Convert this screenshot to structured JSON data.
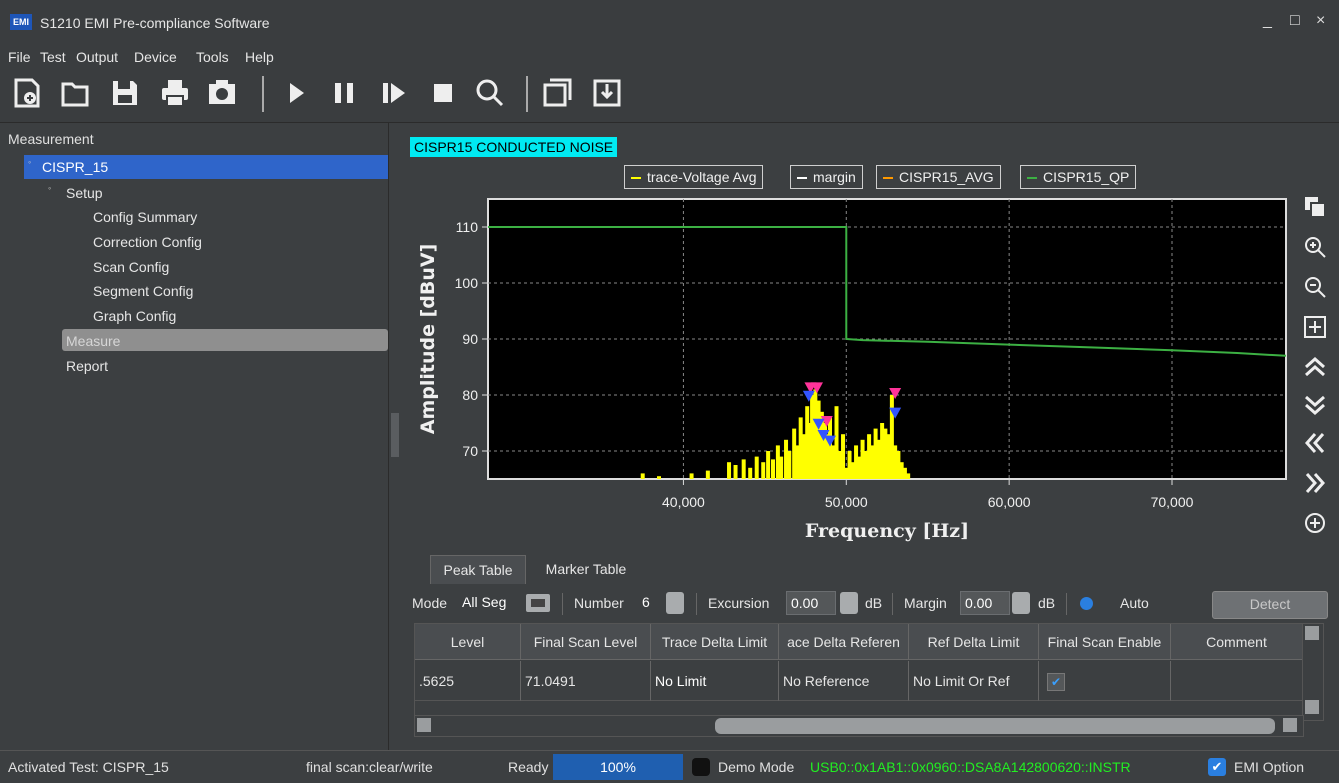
{
  "window": {
    "title": "S1210 EMI Pre-compliance Software",
    "icon_text": "EMI",
    "minimize": "_",
    "maximize": "□",
    "close": "×"
  },
  "menu": [
    "File",
    "Test",
    "Output",
    "Device",
    "Tools",
    "Help"
  ],
  "toolbar": {
    "icons": [
      "new-file-icon",
      "open-folder-icon",
      "save-icon",
      "print-icon",
      "screenshot-icon",
      "run-icon",
      "pause-icon",
      "step-icon",
      "stop-icon",
      "search-icon",
      "window-icon",
      "export-icon"
    ]
  },
  "tree": {
    "header": "Measurement",
    "root": "CISPR_15",
    "setup": "Setup",
    "setup_children": [
      "Config Summary",
      "Correction Config",
      "Scan Config",
      "Segment Config",
      "Graph Config"
    ],
    "measure": "Measure",
    "report": "Report"
  },
  "graph": {
    "trace_title": "CISPR15 CONDUCTED NOISE",
    "legend": [
      {
        "name": "trace-Voltage Avg",
        "color": "#ffff00"
      },
      {
        "name": "margin",
        "color": "#ffffff"
      },
      {
        "name": "CISPR15_AVG",
        "color": "#ff9900"
      },
      {
        "name": "CISPR15_QP",
        "color": "#3cb043"
      }
    ],
    "side_icons": [
      "copy-icon",
      "zoom-in-icon",
      "zoom-out-icon",
      "fit-icon",
      "scroll-up-icon",
      "scroll-down-icon",
      "scroll-left-icon",
      "scroll-right-icon",
      "add-icon"
    ]
  },
  "chart_data": {
    "type": "line",
    "xlabel": "Frequency [Hz]",
    "ylabel": "Amplitude [dBuV]",
    "xlim": [
      28000,
      77000
    ],
    "ylim": [
      65,
      115
    ],
    "xticks": [
      40000,
      50000,
      60000,
      70000
    ],
    "xtick_labels": [
      "40,000",
      "50,000",
      "60,000",
      "70,000"
    ],
    "yticks": [
      70,
      80,
      90,
      100,
      110
    ],
    "ytick_labels": [
      "70",
      "80",
      "90",
      "100",
      "110"
    ],
    "grid": true,
    "legend_position": "top",
    "series": [
      {
        "name": "CISPR15_QP",
        "color": "#3cb043",
        "x": [
          28000,
          50000,
          50000,
          51000,
          55000,
          60000,
          65000,
          70000,
          74000,
          77000
        ],
        "y": [
          110,
          110,
          90,
          89.8,
          89.5,
          89,
          88.5,
          88,
          87.5,
          87
        ]
      },
      {
        "name": "trace-Voltage Avg",
        "color": "#ffff00",
        "type": "bar",
        "x": [
          37500,
          38500,
          40500,
          41500,
          42800,
          43200,
          43700,
          44100,
          44500,
          44900,
          45200,
          45500,
          45800,
          46000,
          46300,
          46500,
          46800,
          47000,
          47200,
          47400,
          47600,
          47800,
          47900,
          48000,
          48100,
          48200,
          48300,
          48400,
          48500,
          48600,
          48700,
          48800,
          48900,
          49000,
          49200,
          49400,
          49600,
          49800,
          50000,
          50200,
          50400,
          50600,
          50800,
          51000,
          51200,
          51400,
          51600,
          51800,
          52000,
          52200,
          52400,
          52600,
          52800,
          53000,
          53200,
          53400,
          53600,
          53800
        ],
        "y": [
          66,
          65.5,
          66,
          66.5,
          68,
          67.5,
          68.5,
          67,
          69,
          68,
          70,
          68.5,
          71,
          69,
          72,
          70,
          74,
          71,
          76,
          73,
          78,
          75,
          80,
          77,
          81,
          78,
          79,
          76,
          77,
          74,
          75,
          72,
          73,
          76,
          71,
          78,
          70,
          73,
          67,
          70,
          68,
          71,
          69,
          72,
          70,
          73,
          71,
          74,
          72,
          75,
          74,
          73,
          80,
          71,
          70,
          68,
          67,
          66
        ]
      }
    ],
    "markers": [
      {
        "x": 47800,
        "y": 81,
        "color": "#ff3399"
      },
      {
        "x": 48200,
        "y": 81,
        "color": "#ff3399"
      },
      {
        "x": 48800,
        "y": 75,
        "color": "#ff3399"
      },
      {
        "x": 53000,
        "y": 80,
        "color": "#ff3399"
      },
      {
        "x": 47700,
        "y": 79.5,
        "color": "#3355ff"
      },
      {
        "x": 48300,
        "y": 74.5,
        "color": "#3355ff"
      },
      {
        "x": 48600,
        "y": 72.5,
        "color": "#3355ff"
      },
      {
        "x": 49000,
        "y": 71.5,
        "color": "#3355ff"
      },
      {
        "x": 53000,
        "y": 76.5,
        "color": "#3355ff"
      }
    ]
  },
  "table_tabs": [
    "Peak Table",
    "Marker Table"
  ],
  "filters": {
    "mode_label": "Mode",
    "mode_value": "All Seg",
    "number_label": "Number",
    "number_value": "6",
    "excursion_label": "Excursion",
    "excursion_value": "0.00",
    "excursion_unit": "dB",
    "margin_label": "Margin",
    "margin_value": "0.00",
    "margin_unit": "dB",
    "auto_label": "Auto",
    "detect_label": "Detect"
  },
  "table": {
    "columns": [
      "Level",
      "Final Scan Level",
      "Trace Delta Limit",
      "ace Delta Referen",
      "Ref Delta Limit",
      "Final Scan Enable",
      "Comment"
    ],
    "rows": [
      [
        ".5625",
        "71.0491",
        "No Limit",
        "No Reference",
        "No Limit Or Ref",
        "✔",
        ""
      ]
    ]
  },
  "status": {
    "activated_test": "Activated Test: CISPR_15",
    "scan_mode": "final scan:clear/write",
    "state": "Ready",
    "progress": "100%",
    "progress_value": 100,
    "demo_mode": "Demo Mode",
    "usb": "USB0::0x1AB1::0x0960::DSA8A142800620::INSTR",
    "emi_option": "EMI Option"
  }
}
